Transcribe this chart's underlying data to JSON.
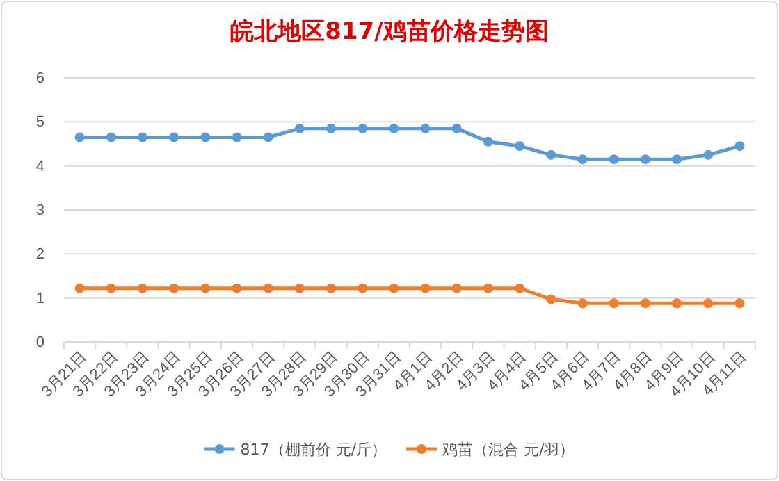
{
  "chart_data": {
    "type": "line",
    "title": "皖北地区817/鸡苗价格走势图",
    "categories": [
      "3月21日",
      "3月22日",
      "3月23日",
      "3月24日",
      "3月25日",
      "3月26日",
      "3月27日",
      "3月28日",
      "3月29日",
      "3月30日",
      "3月31日",
      "4月1日",
      "4月2日",
      "4月3日",
      "4月4日",
      "4月5日",
      "4月6日",
      "4月7日",
      "4月8日",
      "4月9日",
      "4月10日",
      "4月11日"
    ],
    "series": [
      {
        "name": "817（棚前价 元/斤）",
        "color": "#5b9bd5",
        "values": [
          4.65,
          4.65,
          4.65,
          4.65,
          4.65,
          4.65,
          4.65,
          4.85,
          4.85,
          4.85,
          4.85,
          4.85,
          4.85,
          4.55,
          4.45,
          4.25,
          4.15,
          4.15,
          4.15,
          4.15,
          4.25,
          4.45
        ]
      },
      {
        "name": "鸡苗（混合 元/羽）",
        "color": "#ed7d31",
        "values": [
          1.22,
          1.22,
          1.22,
          1.22,
          1.22,
          1.22,
          1.22,
          1.22,
          1.22,
          1.22,
          1.22,
          1.22,
          1.22,
          1.22,
          1.22,
          0.97,
          0.88,
          0.88,
          0.88,
          0.88,
          0.88,
          0.88
        ]
      }
    ],
    "ylim": [
      0,
      6
    ],
    "yticks": [
      0,
      1,
      2,
      3,
      4,
      5,
      6
    ],
    "grid": "y",
    "legend": "bottom",
    "marker": "circle",
    "line_style": "solid"
  }
}
